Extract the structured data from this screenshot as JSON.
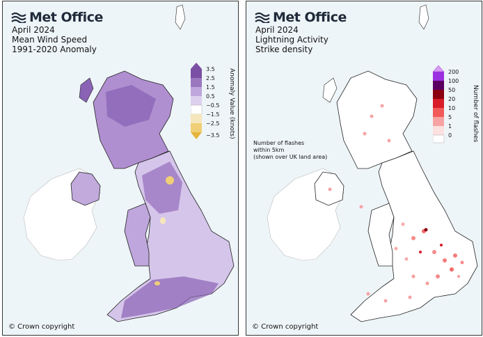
{
  "left_panel": {
    "brand": "Met Office",
    "title_lines": [
      "April 2024",
      "Mean Wind Speed",
      "1991-2020 Anomaly"
    ],
    "legend_title": "Anomaly Value (knots)",
    "legend_ticks": [
      "3.5",
      "2.5",
      "1.5",
      "0.5",
      "−0.5",
      "−1.5",
      "−2.5",
      "−3.5"
    ],
    "legend_colors": [
      "#7b4fa3",
      "#9b77c0",
      "#bfa6dc",
      "#ddd0ee",
      "#ffffff",
      "#f6e6bb",
      "#f0cf76",
      "#e6b43c"
    ],
    "copyright": "© Crown copyright"
  },
  "right_panel": {
    "brand": "Met Office",
    "title_lines": [
      "April 2024",
      "Lightning Activity",
      "Strike density"
    ],
    "note_lines": [
      "Number of flashes",
      "within 5km",
      "(shown over UK land area)"
    ],
    "legend_title": "Number of flashes",
    "legend_ticks": [
      "200",
      "100",
      "50",
      "20",
      "10",
      "5",
      "1",
      "0"
    ],
    "legend_colors": [
      "#9b30e0",
      "#5a0060",
      "#8b0010",
      "#d81c2a",
      "#f25a5a",
      "#f8a3a3",
      "#fde0e0"
    ],
    "copyright": "© Crown copyright"
  },
  "colors": {
    "sea": "#eef5f8",
    "ireland_land": "#ffffff",
    "border": "#222222"
  }
}
